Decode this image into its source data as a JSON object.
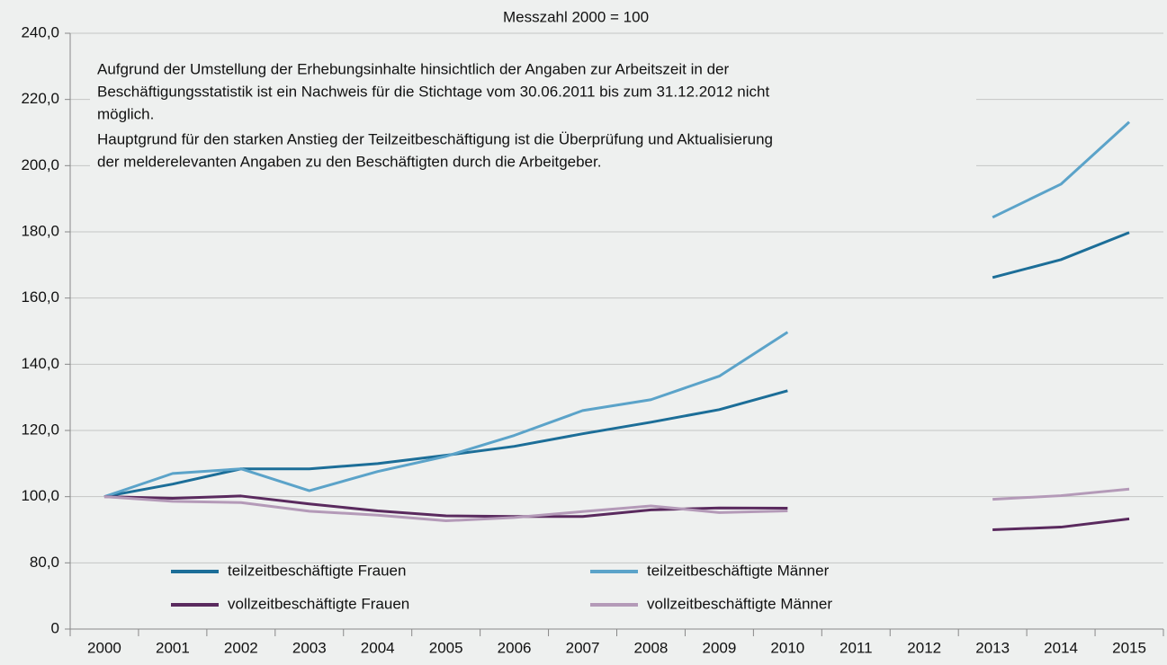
{
  "chart_data": {
    "type": "line",
    "title": "Messzahl 2000 = 100",
    "annotation": [
      "Aufgrund der Umstellung der Erhebungsinhalte hinsichtlich der Angaben zur Arbeitszeit in der",
      "Beschäftigungsstatistik ist ein Nachweis für die Stichtage vom 30.06.2011 bis zum 31.12.2012 nicht",
      "möglich.",
      "Hauptgrund für den starken Anstieg der Teilzeitbeschäftigung ist die Überprüfung und Aktualisierung",
      "der melderelevanten Angaben zu den Beschäftigten durch die Arbeitgeber."
    ],
    "categories": [
      "2000",
      "2001",
      "2002",
      "2003",
      "2004",
      "2005",
      "2006",
      "2007",
      "2008",
      "2009",
      "2010",
      "2011",
      "2012",
      "2013",
      "2014",
      "2015"
    ],
    "series": [
      {
        "name": "teilzeitbeschäftigte Frauen",
        "color": "#1c6e98",
        "values": [
          100,
          103.8,
          108.4,
          108.4,
          110,
          112.5,
          115.2,
          119,
          122.5,
          126.3,
          132,
          null,
          null,
          166.2,
          171.6,
          179.8
        ]
      },
      {
        "name": "teilzeitbeschäftigte Männer",
        "color": "#5ba3c9",
        "values": [
          100,
          107,
          108.4,
          101.8,
          107.6,
          112.2,
          118.5,
          126,
          129.3,
          136.4,
          149.7,
          null,
          null,
          184.4,
          194.4,
          213.2
        ]
      },
      {
        "name": "vollzeitbeschäftigte Frauen",
        "color": "#5a2a5e",
        "values": [
          100,
          99.5,
          100.2,
          97.8,
          95.7,
          94.2,
          94,
          94,
          96,
          96.6,
          96.5,
          null,
          null,
          90,
          90.8,
          93.3
        ]
      },
      {
        "name": "vollzeitbeschäftigte Männer",
        "color": "#b49ab8",
        "values": [
          100,
          98.6,
          98.2,
          95.6,
          94.4,
          92.7,
          93.7,
          95.5,
          97.2,
          95.2,
          95.7,
          null,
          null,
          99.2,
          100.3,
          102.3
        ]
      }
    ],
    "ylim": [
      0,
      240
    ],
    "yticks": [
      0,
      {
        "value": 80,
        "label": "80,0"
      },
      {
        "value": 100,
        "label": "100,0"
      },
      {
        "value": 120,
        "label": "120,0"
      },
      {
        "value": 140,
        "label": "140,0"
      },
      {
        "value": 160,
        "label": "160,0"
      },
      {
        "value": 180,
        "label": "180,0"
      },
      {
        "value": 200,
        "label": "200,0"
      },
      {
        "value": 220,
        "label": "220,0"
      },
      {
        "value": 240,
        "label": "240,0"
      }
    ],
    "grid": true
  }
}
